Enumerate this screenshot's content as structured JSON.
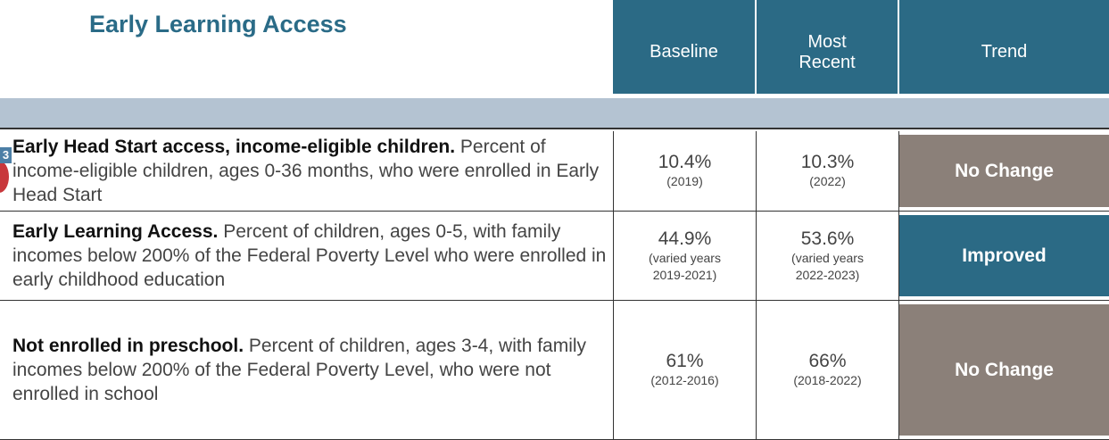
{
  "header": {
    "title": "Early Learning Access",
    "columns": [
      "Baseline",
      "Most Recent",
      "Trend"
    ]
  },
  "badge": "3",
  "rows": [
    {
      "title": "Early Head Start access, income-eligible children.",
      "description": "Percent of income-eligible children, ages 0-36 months, who were enrolled in Early Head Start",
      "baseline": "10.4%",
      "baseline_year": "(2019)",
      "recent": "10.3%",
      "recent_year": "(2022)",
      "trend": "No Change"
    },
    {
      "title": "Early Learning Access.",
      "description": "Percent of children, ages 0-5, with family incomes below 200% of the Federal Poverty Level who were enrolled in early childhood education",
      "baseline": "44.9%",
      "baseline_year": "(varied years 2019-2021)",
      "recent": "53.6%",
      "recent_year": "(varied years 2022-2023)",
      "trend": "Improved"
    },
    {
      "title": "Not enrolled in preschool.",
      "description": "Percent of children, ages 3-4, with family incomes below 200% of the Federal Poverty Level, who were not enrolled in school",
      "baseline": "61%",
      "baseline_year": "(2012-2016)",
      "recent": "66%",
      "recent_year": "(2018-2022)",
      "trend": "No Change"
    }
  ]
}
